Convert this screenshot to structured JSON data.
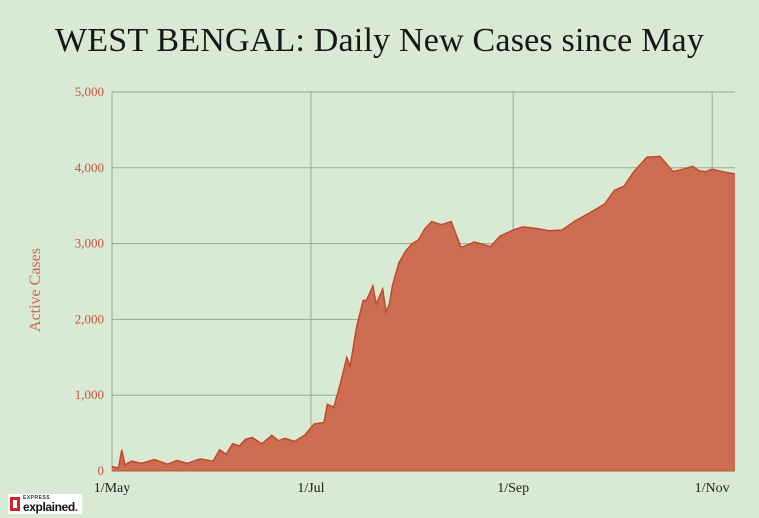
{
  "logo": {
    "small": "EXPRESS",
    "main": "explained",
    "dot": "."
  },
  "chart_data": {
    "type": "area",
    "title": "WEST BENGAL: Daily New Cases since May",
    "xlabel": "",
    "ylabel": "Active Cases",
    "ylim": [
      0,
      5000
    ],
    "yticks": [
      0,
      1000,
      2000,
      3000,
      4000,
      5000
    ],
    "ytick_labels": [
      "0",
      "1,000",
      "2,000",
      "3,000",
      "4,000",
      "5,000"
    ],
    "xticks": [
      "2020-05-01",
      "2020-07-01",
      "2020-09-01",
      "2020-11-01"
    ],
    "xtick_labels": [
      "1/May",
      "1/Jul",
      "1/Sep",
      "1/Nov"
    ],
    "xlim": [
      "2020-05-01",
      "2020-11-08"
    ],
    "grid": true,
    "fill_color": "#cc6d52",
    "line_color": "#c14a2c",
    "series": [
      {
        "name": "",
        "x": [
          "2020-05-01",
          "2020-05-03",
          "2020-05-04",
          "2020-05-05",
          "2020-05-07",
          "2020-05-10",
          "2020-05-14",
          "2020-05-18",
          "2020-05-21",
          "2020-05-24",
          "2020-05-28",
          "2020-06-01",
          "2020-06-03",
          "2020-06-05",
          "2020-06-07",
          "2020-06-09",
          "2020-06-11",
          "2020-06-13",
          "2020-06-16",
          "2020-06-19",
          "2020-06-21",
          "2020-06-23",
          "2020-06-26",
          "2020-06-29",
          "2020-07-02",
          "2020-07-05",
          "2020-07-06",
          "2020-07-08",
          "2020-07-10",
          "2020-07-12",
          "2020-07-13",
          "2020-07-15",
          "2020-07-17",
          "2020-07-18",
          "2020-07-20",
          "2020-07-21",
          "2020-07-23",
          "2020-07-24",
          "2020-07-25",
          "2020-07-26",
          "2020-07-28",
          "2020-07-30",
          "2020-08-01",
          "2020-08-03",
          "2020-08-05",
          "2020-08-07",
          "2020-08-10",
          "2020-08-13",
          "2020-08-16",
          "2020-08-19",
          "2020-08-20",
          "2020-08-22",
          "2020-08-25",
          "2020-08-28",
          "2020-09-01",
          "2020-09-04",
          "2020-09-08",
          "2020-09-12",
          "2020-09-16",
          "2020-09-20",
          "2020-09-25",
          "2020-09-29",
          "2020-10-02",
          "2020-10-05",
          "2020-10-08",
          "2020-10-12",
          "2020-10-16",
          "2020-10-20",
          "2020-10-23",
          "2020-10-26",
          "2020-10-28",
          "2020-10-30",
          "2020-11-01",
          "2020-11-04",
          "2020-11-08"
        ],
        "values": [
          60,
          40,
          280,
          80,
          130,
          100,
          150,
          90,
          140,
          100,
          160,
          130,
          280,
          220,
          360,
          330,
          420,
          440,
          360,
          470,
          400,
          430,
          390,
          470,
          620,
          640,
          880,
          840,
          1150,
          1500,
          1380,
          1900,
          2250,
          2250,
          2440,
          2200,
          2400,
          2100,
          2200,
          2450,
          2750,
          2900,
          3000,
          3050,
          3200,
          3290,
          3250,
          3290,
          2950,
          3000,
          3020,
          3000,
          2960,
          3100,
          3180,
          3220,
          3200,
          3170,
          3180,
          3300,
          3420,
          3520,
          3700,
          3760,
          3950,
          4140,
          4150,
          3950,
          3980,
          4020,
          3960,
          3950,
          3980,
          3950,
          3920
        ]
      }
    ]
  }
}
